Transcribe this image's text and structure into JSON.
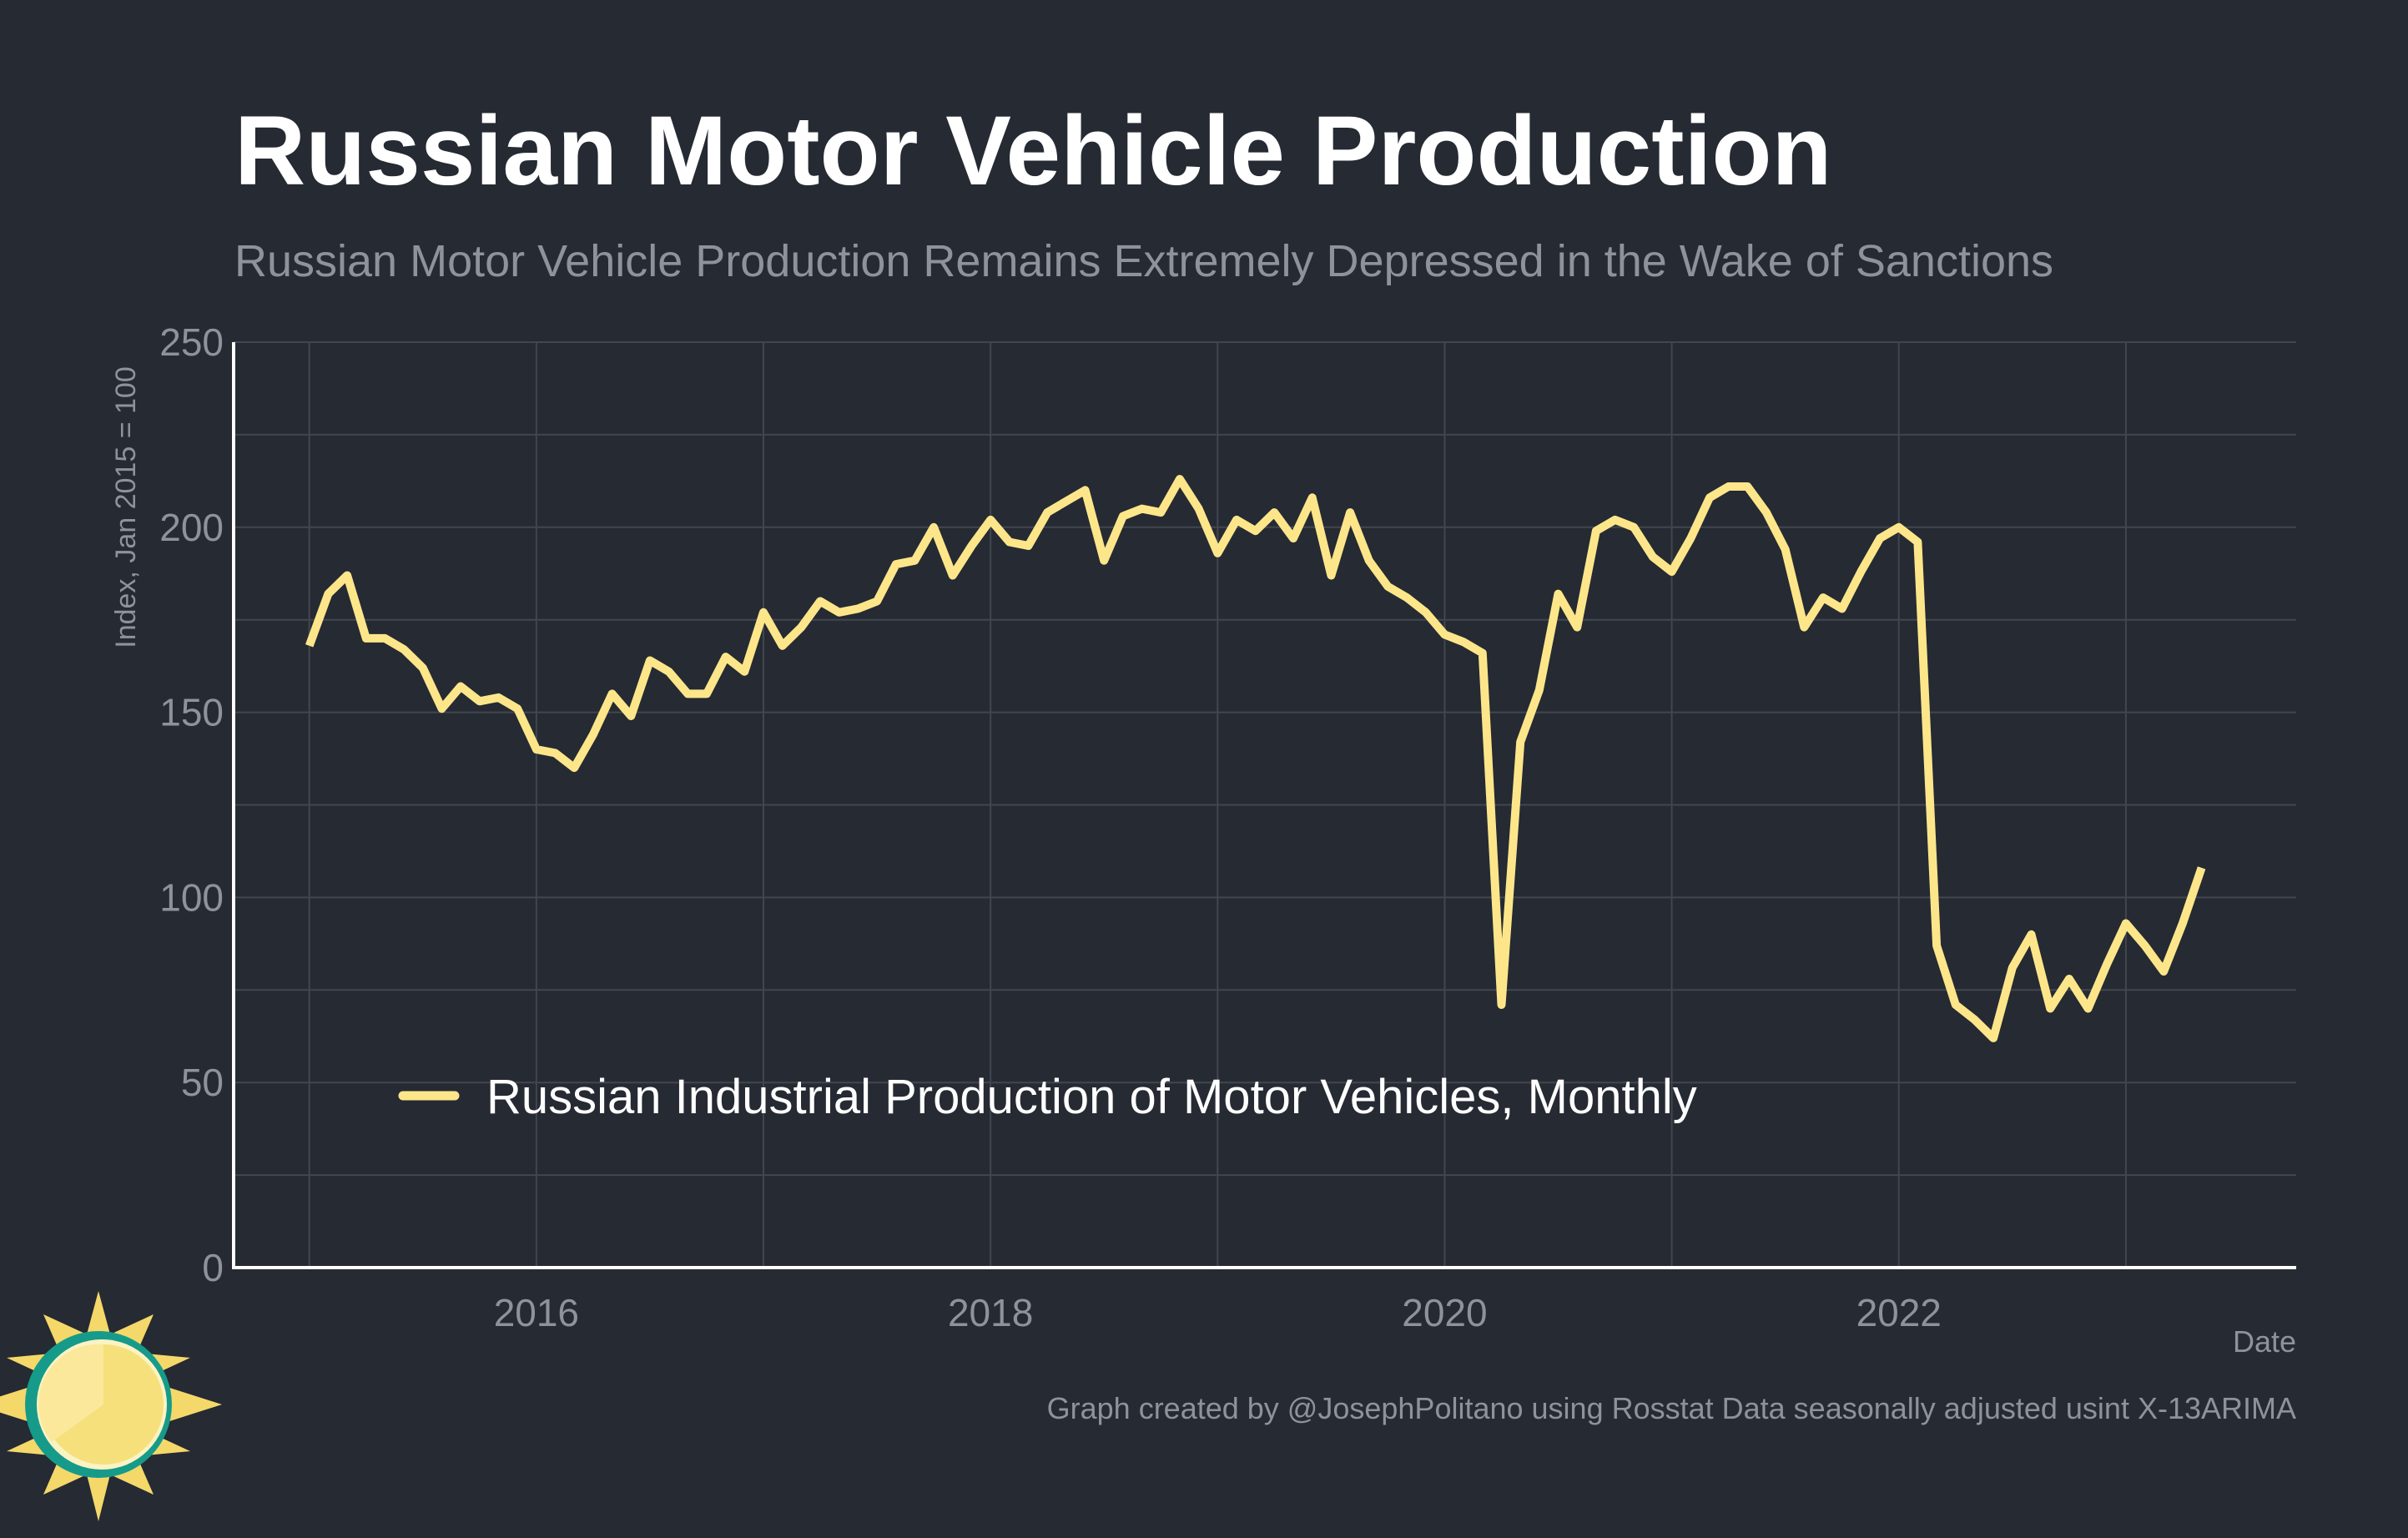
{
  "chart_data": {
    "type": "line",
    "title": "Russian Motor Vehicle Production",
    "subtitle": "Russian Motor Vehicle Production Remains Extremely Depressed in the Wake of Sanctions",
    "xlabel": "Date",
    "ylabel": "Index, Jan 2015 = 100",
    "caption": "Graph created by @JosephPolitano using Rosstat Data seasonally adjusted usint X-13ARIMA",
    "ylim": [
      0,
      250
    ],
    "yticks": [
      0,
      50,
      100,
      150,
      200,
      250
    ],
    "xlim": [
      "2014-09",
      "2023-10"
    ],
    "xticks": [
      "2016",
      "2018",
      "2020",
      "2022"
    ],
    "grid": true,
    "legend_position": "bottom-left",
    "colors": {
      "background": "#252a33",
      "series": "#fde68a",
      "text": "#ffffff",
      "muted": "#8e939b",
      "grid": "#41464f"
    },
    "x": [
      "2015-01",
      "2015-02",
      "2015-03",
      "2015-04",
      "2015-05",
      "2015-06",
      "2015-07",
      "2015-08",
      "2015-09",
      "2015-10",
      "2015-11",
      "2015-12",
      "2016-01",
      "2016-02",
      "2016-03",
      "2016-04",
      "2016-05",
      "2016-06",
      "2016-07",
      "2016-08",
      "2016-09",
      "2016-10",
      "2016-11",
      "2016-12",
      "2017-01",
      "2017-02",
      "2017-03",
      "2017-04",
      "2017-05",
      "2017-06",
      "2017-07",
      "2017-08",
      "2017-09",
      "2017-10",
      "2017-11",
      "2017-12",
      "2018-01",
      "2018-02",
      "2018-03",
      "2018-04",
      "2018-05",
      "2018-06",
      "2018-07",
      "2018-08",
      "2018-09",
      "2018-10",
      "2018-11",
      "2018-12",
      "2019-01",
      "2019-02",
      "2019-03",
      "2019-04",
      "2019-05",
      "2019-06",
      "2019-07",
      "2019-08",
      "2019-09",
      "2019-10",
      "2019-11",
      "2019-12",
      "2020-01",
      "2020-02",
      "2020-03",
      "2020-04",
      "2020-05",
      "2020-06",
      "2020-07",
      "2020-08",
      "2020-09",
      "2020-10",
      "2020-11",
      "2020-12",
      "2021-01",
      "2021-02",
      "2021-03",
      "2021-04",
      "2021-05",
      "2021-06",
      "2021-07",
      "2021-08",
      "2021-09",
      "2021-10",
      "2021-11",
      "2021-12",
      "2022-01",
      "2022-02",
      "2022-03",
      "2022-04",
      "2022-05",
      "2022-06",
      "2022-07",
      "2022-08",
      "2022-09",
      "2022-10",
      "2022-11",
      "2022-12",
      "2023-01",
      "2023-02",
      "2023-03",
      "2023-04",
      "2023-05"
    ],
    "series": [
      {
        "name": "Russian Industrial Production of Motor Vehicles, Monthly",
        "values": [
          168,
          182,
          187,
          170,
          170,
          167,
          162,
          151,
          157,
          153,
          154,
          151,
          140,
          139,
          135,
          144,
          155,
          149,
          164,
          161,
          155,
          155,
          165,
          161,
          177,
          168,
          173,
          180,
          177,
          178,
          180,
          190,
          191,
          200,
          187,
          195,
          202,
          196,
          195,
          204,
          207,
          210,
          191,
          203,
          205,
          204,
          213,
          205,
          193,
          202,
          199,
          204,
          197,
          208,
          187,
          204,
          191,
          184,
          181,
          177,
          171,
          169,
          166,
          71,
          142,
          156,
          182,
          173,
          199,
          202,
          200,
          192,
          188,
          197,
          208,
          211,
          211,
          204,
          194,
          173,
          181,
          178,
          188,
          197,
          200,
          196,
          87,
          71,
          67,
          62,
          81,
          90,
          70,
          78,
          70,
          82,
          93,
          87,
          80,
          93,
          108
        ]
      }
    ]
  }
}
